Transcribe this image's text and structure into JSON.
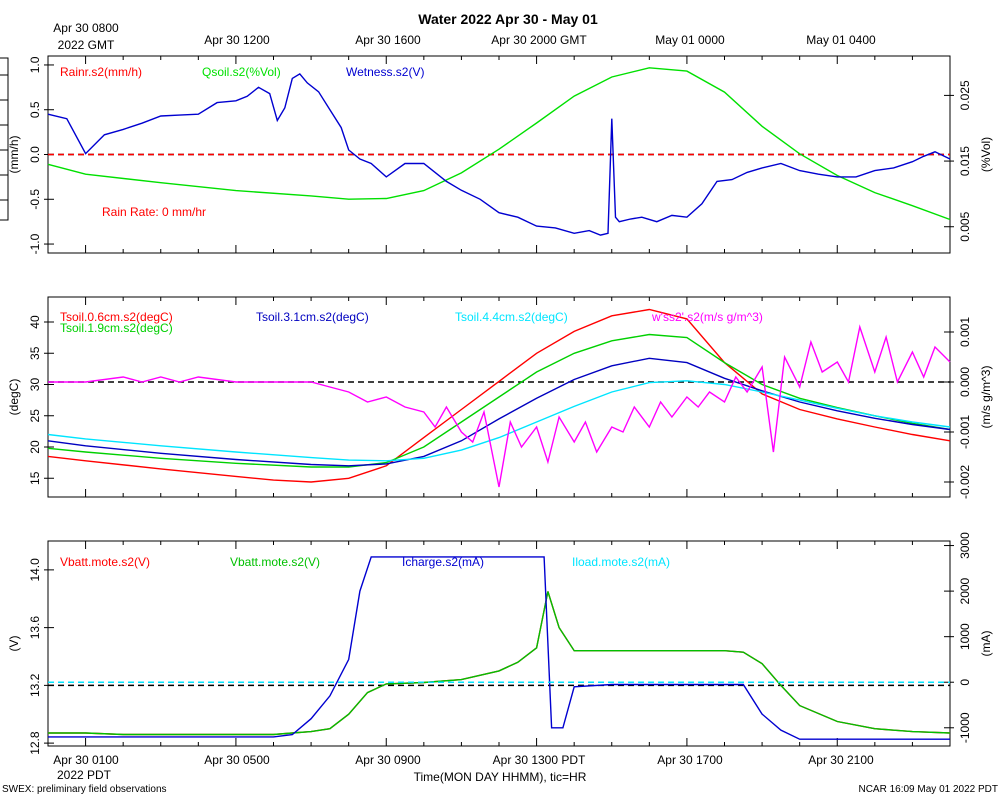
{
  "page": {
    "title": "Water 2022 Apr 30 - May 01",
    "top_axis": {
      "labels": [
        {
          "line1": "Apr 30 0800",
          "line2": "2022 GMT",
          "hour": 0
        },
        {
          "line1": "Apr 30 1200",
          "line2": "",
          "hour": 4
        },
        {
          "line1": "Apr 30 1600",
          "line2": "",
          "hour": 8
        },
        {
          "line1": "Apr 30 2000 GMT",
          "line2": "",
          "hour": 12
        },
        {
          "line1": "May 01 0000",
          "line2": "",
          "hour": 16
        },
        {
          "line1": "May 01 0400",
          "line2": "",
          "hour": 20
        }
      ]
    },
    "bottom_axis": {
      "labels": [
        {
          "line1": "Apr 30 0100",
          "line2": "2022 PDT",
          "hour": 0
        },
        {
          "line1": "Apr 30 0500",
          "line2": "",
          "hour": 4
        },
        {
          "line1": "Apr 30 0900",
          "line2": "",
          "hour": 8
        },
        {
          "line1": "Apr 30 1300 PDT",
          "line2": "",
          "hour": 12
        },
        {
          "line1": "Apr 30 1700",
          "line2": "",
          "hour": 16
        },
        {
          "line1": "Apr 30 2100",
          "line2": "",
          "hour": 20
        }
      ],
      "xlabel": "Time(MON DAY HHMM), tic=HR"
    },
    "footer_left": "SWEX: preliminary field observations",
    "footer_right": "NCAR 16:09 May 01 2022 PDT"
  },
  "chart_data": [
    {
      "type": "line",
      "panel": "rain-soil-moisture",
      "x_range_hours": [
        -1,
        23
      ],
      "left_axis": {
        "label": "(mm/h)",
        "ylim": [
          -1.1,
          1.1
        ],
        "ticks": [
          -1.0,
          -0.5,
          0.0,
          0.5,
          1.0
        ],
        "tick_labels": [
          "-1.0",
          "-0.5",
          "0.0",
          "0.5",
          "1.0"
        ]
      },
      "right_axis": {
        "label": "(%Vol)",
        "ylim": [
          0.001,
          0.031
        ],
        "ticks": [
          0.005,
          0.015,
          0.025
        ],
        "tick_labels": [
          "0.005",
          "0.015",
          "0.025"
        ]
      },
      "annotation": "Rain Rate: 0 mm/hr",
      "reference_lines": [
        {
          "axis": "left",
          "value": 0.0,
          "color": "#000000"
        }
      ],
      "series": [
        {
          "name": "Rainr.s2(mm/h)",
          "axis": "left",
          "color": "#ff0000",
          "x": [
            -1,
            23
          ],
          "values": [
            0,
            0
          ]
        },
        {
          "name": "Qsoil.s2(%Vol)",
          "axis": "right",
          "color": "#00e000",
          "x": [
            -1,
            0,
            2,
            4,
            6,
            7,
            8,
            9,
            10,
            11,
            12,
            13,
            14,
            15,
            16,
            17,
            18,
            19,
            20,
            21,
            22,
            23
          ],
          "values": [
            0.0145,
            0.013,
            0.0117,
            0.0105,
            0.0097,
            0.0092,
            0.0093,
            0.0105,
            0.0132,
            0.0168,
            0.0208,
            0.0249,
            0.0278,
            0.0292,
            0.0287,
            0.0255,
            0.0203,
            0.0161,
            0.0128,
            0.0102,
            0.0082,
            0.0061
          ]
        },
        {
          "name": "Wetness.s2(V)",
          "axis": "left",
          "color": "#0000d0",
          "x": [
            -1,
            -0.5,
            0,
            0.5,
            1,
            1.5,
            2,
            2.5,
            3,
            3.5,
            4,
            4.3,
            4.6,
            4.9,
            5.1,
            5.3,
            5.5,
            5.7,
            5.9,
            6.2,
            6.5,
            6.8,
            7,
            7.3,
            7.6,
            8,
            8.5,
            9,
            9.3,
            9.6,
            10,
            10.5,
            11,
            11.5,
            12,
            12.5,
            13,
            13.4,
            13.7,
            13.9,
            14.0,
            14.1,
            14.2,
            14.5,
            14.8,
            15.2,
            15.6,
            16,
            16.4,
            16.8,
            17.2,
            17.6,
            18,
            18.5,
            19,
            19.5,
            20,
            20.5,
            21,
            21.5,
            22,
            22.3,
            22.6,
            23
          ],
          "values": [
            0.45,
            0.4,
            0.01,
            0.22,
            0.28,
            0.35,
            0.43,
            0.44,
            0.45,
            0.58,
            0.6,
            0.65,
            0.75,
            0.68,
            0.38,
            0.52,
            0.85,
            0.9,
            0.8,
            0.7,
            0.5,
            0.3,
            0.05,
            -0.05,
            -0.1,
            -0.25,
            -0.1,
            -0.1,
            -0.2,
            -0.3,
            -0.4,
            -0.5,
            -0.65,
            -0.7,
            -0.8,
            -0.82,
            -0.88,
            -0.85,
            -0.9,
            -0.88,
            0.4,
            -0.7,
            -0.75,
            -0.72,
            -0.7,
            -0.75,
            -0.68,
            -0.7,
            -0.55,
            -0.3,
            -0.28,
            -0.2,
            -0.15,
            -0.1,
            -0.18,
            -0.22,
            -0.25,
            -0.25,
            -0.18,
            -0.15,
            -0.08,
            -0.02,
            0.03,
            -0.05
          ]
        }
      ]
    },
    {
      "type": "line",
      "panel": "soil-temperature-flux",
      "x_range_hours": [
        -1,
        23
      ],
      "left_axis": {
        "label": "(degC)",
        "ylim": [
          12,
          44
        ],
        "ticks": [
          15,
          20,
          25,
          30,
          35,
          40
        ],
        "tick_labels": [
          "15",
          "20",
          "25",
          "30",
          "35",
          "40"
        ]
      },
      "right_axis": {
        "label": "(m/s g/m^3)",
        "ylim": [
          -0.0023,
          0.0017
        ],
        "ticks": [
          -0.002,
          -0.001,
          0.0,
          0.001
        ],
        "tick_labels": [
          "-0.002",
          "-0.001",
          "0.000",
          "0.001"
        ]
      },
      "reference_lines": [
        {
          "axis": "right",
          "value": 0.0,
          "color": "#000000"
        }
      ],
      "series": [
        {
          "name": "Tsoil.0.6cm.s2(degC)",
          "axis": "left",
          "color": "#ff0000",
          "x": [
            -1,
            0,
            2,
            4,
            5,
            6,
            7,
            8,
            9,
            10,
            11,
            12,
            13,
            14,
            15,
            16,
            17,
            18,
            19,
            20,
            21,
            22,
            23
          ],
          "values": [
            18.5,
            17.8,
            16.5,
            15.3,
            14.7,
            14.4,
            15.0,
            17.0,
            21.5,
            26.0,
            30.5,
            35.0,
            38.5,
            41.0,
            42.0,
            40.5,
            33.5,
            28.5,
            26.0,
            24.5,
            23.2,
            22.0,
            21.0
          ]
        },
        {
          "name": "Tsoil.1.9cm.s2(degC)",
          "axis": "left",
          "color": "#00d000",
          "x": [
            -1,
            0,
            2,
            4,
            6,
            7,
            8,
            9,
            10,
            11,
            12,
            13,
            14,
            15,
            16,
            17,
            18,
            19,
            20,
            21,
            22,
            23
          ],
          "values": [
            19.8,
            19.2,
            18.2,
            17.4,
            16.8,
            16.8,
            17.5,
            20.0,
            24.0,
            28.0,
            32.0,
            35.0,
            37.0,
            38.0,
            37.5,
            33.5,
            30.0,
            27.8,
            26.3,
            25.0,
            23.8,
            22.8
          ]
        },
        {
          "name": "Tsoil.3.1cm.s2(degC)",
          "axis": "left",
          "color": "#0000c0",
          "x": [
            -1,
            0,
            2,
            4,
            6,
            7,
            8,
            9,
            10,
            11,
            12,
            13,
            14,
            15,
            16,
            17,
            18,
            19,
            20,
            21,
            22,
            23
          ],
          "values": [
            21.0,
            20.2,
            19.0,
            18.0,
            17.2,
            17.0,
            17.3,
            18.5,
            21.0,
            24.5,
            27.8,
            30.8,
            33.0,
            34.2,
            33.5,
            31.0,
            29.0,
            27.2,
            25.8,
            24.6,
            23.6,
            22.8
          ]
        },
        {
          "name": "Tsoil.4.4cm.s2(degC)",
          "axis": "left",
          "color": "#00e5ff",
          "x": [
            -1,
            0,
            2,
            4,
            6,
            7,
            8,
            9,
            10,
            11,
            12,
            13,
            14,
            15,
            16,
            17,
            18,
            19,
            20,
            21,
            22,
            23
          ],
          "values": [
            22.0,
            21.3,
            20.2,
            19.2,
            18.3,
            17.9,
            17.8,
            18.2,
            19.5,
            21.5,
            24.0,
            26.5,
            28.8,
            30.3,
            30.6,
            30.0,
            28.8,
            27.5,
            26.2,
            25.0,
            24.0,
            23.2
          ]
        },
        {
          "name": "w'ss2'.s2(m/s g/m^3)",
          "axis": "right",
          "color": "#ff00ff",
          "x": [
            -1,
            0,
            1,
            1.5,
            2,
            2.5,
            3,
            4,
            5,
            6,
            6.5,
            7,
            7.5,
            8,
            8.5,
            9,
            9.3,
            9.6,
            10,
            10.3,
            10.6,
            11,
            11.3,
            11.6,
            12,
            12.3,
            12.6,
            13,
            13.3,
            13.6,
            14,
            14.3,
            14.6,
            15,
            15.3,
            15.6,
            16,
            16.3,
            16.6,
            17,
            17.3,
            17.6,
            18,
            18.3,
            18.6,
            19,
            19.3,
            19.6,
            20,
            20.3,
            20.6,
            21,
            21.3,
            21.6,
            22,
            22.3,
            22.6,
            23
          ],
          "values": [
            0.0,
            0.0,
            0.0001,
            0.0,
            0.0001,
            0.0,
            0.0001,
            0.0,
            0.0,
            0.0,
            -0.0001,
            -0.0002,
            -0.0004,
            -0.0003,
            -0.0005,
            -0.0006,
            -0.0009,
            -0.0005,
            -0.001,
            -0.0012,
            -0.0006,
            -0.0021,
            -0.0008,
            -0.0013,
            -0.0009,
            -0.0016,
            -0.0007,
            -0.0012,
            -0.0008,
            -0.0014,
            -0.0009,
            -0.001,
            -0.0005,
            -0.0009,
            -0.0004,
            -0.0007,
            -0.0003,
            -0.0005,
            -0.0002,
            -0.0004,
            0.0001,
            -0.0002,
            0.0003,
            -0.0014,
            0.0005,
            -0.0001,
            0.0008,
            0.0002,
            0.0004,
            0.0,
            0.0011,
            0.0002,
            0.0009,
            0.0,
            0.0006,
            0.0001,
            0.0007,
            0.0004
          ]
        }
      ]
    },
    {
      "type": "line",
      "panel": "battery-charge",
      "x_range_hours": [
        -1,
        23
      ],
      "left_axis": {
        "label": "(V)",
        "ylim": [
          12.78,
          14.2
        ],
        "ticks": [
          12.8,
          13.2,
          13.6,
          14.0
        ],
        "tick_labels": [
          "12.8",
          "13.2",
          "13.6",
          "14.0"
        ]
      },
      "right_axis": {
        "label": "(mA)",
        "ylim": [
          -1400,
          3100
        ],
        "ticks": [
          -1000,
          0,
          1000,
          2000,
          3000
        ],
        "tick_labels": [
          "-1000",
          "0",
          "1000",
          "2000",
          "3000"
        ]
      },
      "reference_lines": [
        {
          "axis": "left",
          "value": 13.2,
          "color": "#000000"
        },
        {
          "axis": "right",
          "value": 0,
          "color": "#00e5ff"
        }
      ],
      "series": [
        {
          "name": "Vbatt.mote.s2(V)",
          "axis": "left",
          "color": "#ff0000",
          "x": [
            -1,
            0,
            1,
            2,
            3,
            4,
            5,
            5.5,
            6,
            6.5,
            7,
            7.5,
            8,
            9,
            10,
            11,
            11.5,
            12,
            12.3,
            12.6,
            13,
            14,
            15,
            16,
            17,
            17.5,
            18,
            18.5,
            19,
            20,
            21,
            22,
            23
          ],
          "values": [
            12.87,
            12.87,
            12.86,
            12.86,
            12.86,
            12.86,
            12.86,
            12.87,
            12.88,
            12.9,
            13.0,
            13.15,
            13.21,
            13.22,
            13.24,
            13.3,
            13.36,
            13.46,
            13.85,
            13.6,
            13.44,
            13.44,
            13.44,
            13.44,
            13.44,
            13.43,
            13.35,
            13.2,
            13.06,
            12.95,
            12.9,
            12.88,
            12.87
          ]
        },
        {
          "name": "Vbatt.mote.s2(V)",
          "axis": "left",
          "color": "#00c000",
          "x": [
            -1,
            0,
            1,
            2,
            3,
            4,
            5,
            5.5,
            6,
            6.5,
            7,
            7.5,
            8,
            9,
            10,
            11,
            11.5,
            12,
            12.3,
            12.6,
            13,
            14,
            15,
            16,
            17,
            17.5,
            18,
            18.5,
            19,
            20,
            21,
            22,
            23
          ],
          "values": [
            12.87,
            12.87,
            12.86,
            12.86,
            12.86,
            12.86,
            12.86,
            12.87,
            12.88,
            12.9,
            13.0,
            13.15,
            13.21,
            13.22,
            13.24,
            13.3,
            13.36,
            13.46,
            13.85,
            13.6,
            13.44,
            13.44,
            13.44,
            13.44,
            13.44,
            13.43,
            13.35,
            13.2,
            13.06,
            12.95,
            12.9,
            12.88,
            12.87
          ]
        },
        {
          "name": "Icharge.s2(mA)",
          "axis": "right",
          "color": "#0000d0",
          "x": [
            -1,
            0,
            1,
            2,
            3,
            4,
            4.5,
            5,
            5.5,
            6,
            6.5,
            7,
            7.3,
            7.6,
            8,
            9,
            10,
            11,
            12,
            12.2,
            12.4,
            12.7,
            13,
            14,
            15,
            16,
            17,
            17.5,
            18,
            18.5,
            19,
            20,
            21,
            22,
            23
          ],
          "values": [
            -1200,
            -1200,
            -1200,
            -1200,
            -1200,
            -1200,
            -1200,
            -1200,
            -1150,
            -800,
            -300,
            500,
            2000,
            2750,
            2750,
            2750,
            2750,
            2750,
            2750,
            2750,
            -1000,
            -1000,
            -100,
            -50,
            -50,
            -50,
            -50,
            -50,
            -700,
            -1050,
            -1250,
            -1250,
            -1250,
            -1250,
            -1250
          ]
        },
        {
          "name": "Iload.mote.s2(mA)",
          "axis": "right",
          "color": "#00e5ff",
          "x": [
            -1,
            23
          ],
          "values": [
            0,
            0
          ]
        }
      ]
    }
  ]
}
